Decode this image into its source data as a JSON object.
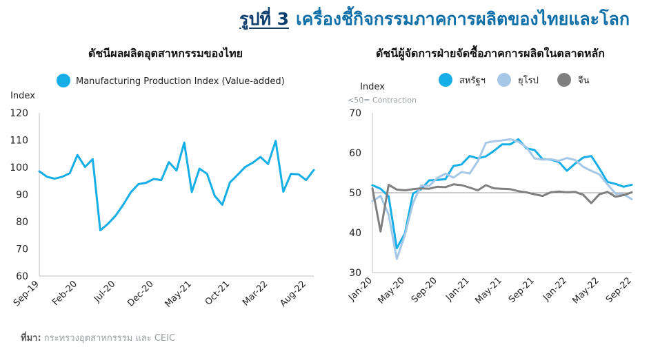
{
  "header": {
    "figure_no": "รูปที่ 3",
    "title": "เครื่องชี้กิจกรรมภาคการผลิตของไทยและโลก"
  },
  "source": {
    "label": "ที่มา:",
    "text": " กระทรวงอุตสาหกรรรม และ CEIC"
  },
  "colors": {
    "blue": "#16aee6",
    "light_blue": "#a7c7e7",
    "grey": "#7f7f7f",
    "title": "#0f6fa8"
  },
  "chart_data": [
    {
      "type": "line",
      "title": "ดัชนีผลผลิตอุตสาหกรรมของไทย",
      "ylabel": "Index",
      "ylim": [
        60,
        120
      ],
      "yticks": [
        60,
        70,
        80,
        90,
        100,
        110,
        120
      ],
      "xticklabels": [
        "Sep-19",
        "Feb-20",
        "Jul-20",
        "Dec-20",
        "May-21",
        "Oct-21",
        "Mar-22",
        "Aug-22"
      ],
      "x": [
        "Sep-19",
        "Oct-19",
        "Nov-19",
        "Dec-19",
        "Jan-20",
        "Feb-20",
        "Mar-20",
        "Apr-20",
        "May-20",
        "Jun-20",
        "Jul-20",
        "Aug-20",
        "Sep-20",
        "Oct-20",
        "Nov-20",
        "Dec-20",
        "Jan-21",
        "Feb-21",
        "Mar-21",
        "Apr-21",
        "May-21",
        "Jun-21",
        "Jul-21",
        "Aug-21",
        "Sep-21",
        "Oct-21",
        "Nov-21",
        "Dec-21",
        "Jan-22",
        "Feb-22",
        "Mar-22",
        "Apr-22",
        "May-22",
        "Jun-22",
        "Jul-22",
        "Aug-22",
        "Sep-22"
      ],
      "legend_position": "top",
      "series": [
        {
          "name": "Manufacturing Production Index (Value-added)",
          "color": "#16aee6",
          "values": [
            98.5,
            96.5,
            95.8,
            96.5,
            97.8,
            104.5,
            100.1,
            103,
            76.8,
            79.2,
            82.2,
            86.2,
            90.8,
            93.8,
            94.3,
            95.7,
            95.3,
            101.9,
            98.8,
            109.1,
            90.9,
            99.5,
            97.6,
            89.5,
            86.2,
            94.4,
            97.2,
            100.1,
            101.7,
            103.8,
            101.2,
            109.7,
            91,
            97.6,
            97.4,
            95.3,
            99
          ]
        }
      ]
    },
    {
      "type": "line",
      "title": "ดัชนีผู้จัดการฝ่ายจัดซื้อภาคการผลิตในตลาดหลัก",
      "ylabel": "Index",
      "note": "<50= Contraction",
      "ylim": [
        30,
        70
      ],
      "yticks": [
        30,
        40,
        50,
        60,
        70
      ],
      "reference_line": 50,
      "xticklabels": [
        "Jan-20",
        "May-20",
        "Sep-20",
        "Jan-21",
        "May-21",
        "Sep-21",
        "Jan-22",
        "May-22",
        "Sep-22"
      ],
      "x": [
        "Jan-20",
        "Feb-20",
        "Mar-20",
        "Apr-20",
        "May-20",
        "Jun-20",
        "Jul-20",
        "Aug-20",
        "Sep-20",
        "Oct-20",
        "Nov-20",
        "Dec-20",
        "Jan-21",
        "Feb-21",
        "Mar-21",
        "Apr-21",
        "May-21",
        "Jun-21",
        "Jul-21",
        "Aug-21",
        "Sep-21",
        "Oct-21",
        "Nov-21",
        "Dec-21",
        "Jan-22",
        "Feb-22",
        "Mar-22",
        "Apr-22",
        "May-22",
        "Jun-22",
        "Jul-22",
        "Aug-22",
        "Sep-22"
      ],
      "legend_position": "top",
      "series": [
        {
          "name": "สหรัฐฯ",
          "color": "#16aee6",
          "values": [
            51.9,
            51.0,
            49.1,
            36.1,
            39.8,
            49.8,
            50.9,
            53.1,
            53.2,
            53.4,
            56.7,
            57.1,
            59.2,
            58.6,
            59.1,
            60.5,
            62.1,
            62.1,
            63.4,
            61.1,
            60.7,
            58.4,
            58.3,
            57.7,
            55.5,
            57.3,
            58.8,
            59.2,
            56.1,
            52.7,
            52.2,
            51.5,
            52.0
          ]
        },
        {
          "name": "ยุโรป",
          "color": "#a7c7e7",
          "values": [
            47.9,
            49.2,
            44.5,
            33.4,
            39.4,
            47.4,
            51.8,
            51.7,
            53.7,
            54.8,
            53.8,
            55.2,
            54.8,
            57.9,
            62.5,
            62.9,
            63.1,
            63.4,
            62.8,
            61.4,
            58.6,
            58.3,
            58.4,
            58.0,
            58.7,
            58.2,
            56.5,
            55.5,
            54.6,
            52.1,
            49.8,
            49.6,
            48.4
          ]
        },
        {
          "name": "จีน",
          "color": "#7f7f7f",
          "values": [
            51.1,
            40.3,
            52.0,
            50.8,
            50.6,
            50.9,
            51.1,
            51.0,
            51.5,
            51.4,
            52.1,
            51.9,
            51.3,
            50.6,
            51.9,
            51.1,
            51.0,
            50.9,
            50.4,
            50.1,
            49.6,
            49.2,
            50.1,
            50.3,
            50.1,
            50.2,
            49.5,
            47.4,
            49.6,
            50.2,
            49.0,
            49.4,
            50.1
          ]
        }
      ]
    }
  ]
}
